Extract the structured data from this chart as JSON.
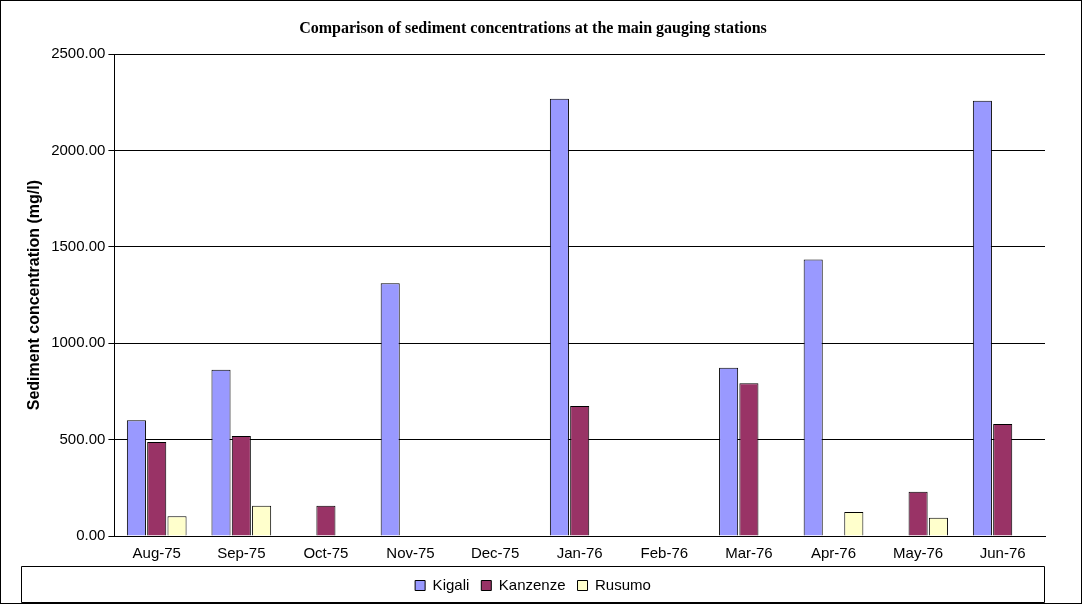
{
  "chart_data": {
    "type": "bar",
    "title": "Comparison of sediment concentrations at the main gauging stations",
    "ylabel": "Sediment concentration (mg/l)",
    "categories": [
      "Aug-75",
      "Sep-75",
      "Oct-75",
      "Nov-75",
      "Dec-75",
      "Jan-76",
      "Feb-76",
      "Mar-76",
      "Apr-76",
      "May-76",
      "Jun-76"
    ],
    "series": [
      {
        "name": "Kigali",
        "color": "#9999ff",
        "values": [
          601,
          863,
          null,
          1312,
          null,
          2269,
          null,
          873,
          1435,
          null,
          2259
        ]
      },
      {
        "name": "Kanzenze",
        "color": "#993366",
        "values": [
          488,
          519,
          157,
          null,
          null,
          675,
          null,
          793,
          null,
          229,
          581
        ]
      },
      {
        "name": "Rusumo",
        "color": "#ffffcc",
        "values": [
          103,
          157,
          null,
          null,
          null,
          null,
          null,
          null,
          124,
          95,
          null
        ]
      }
    ],
    "ylim": [
      0,
      2500
    ],
    "yticks": [
      {
        "value": 0,
        "label": "0.00"
      },
      {
        "value": 500,
        "label": "500.00"
      },
      {
        "value": 1000,
        "label": "1000.00"
      },
      {
        "value": 1500,
        "label": "1500.00"
      },
      {
        "value": 2000,
        "label": "2000.00"
      },
      {
        "value": 2500,
        "label": "2500.00"
      }
    ],
    "grid": "y",
    "legend": "bottom"
  }
}
